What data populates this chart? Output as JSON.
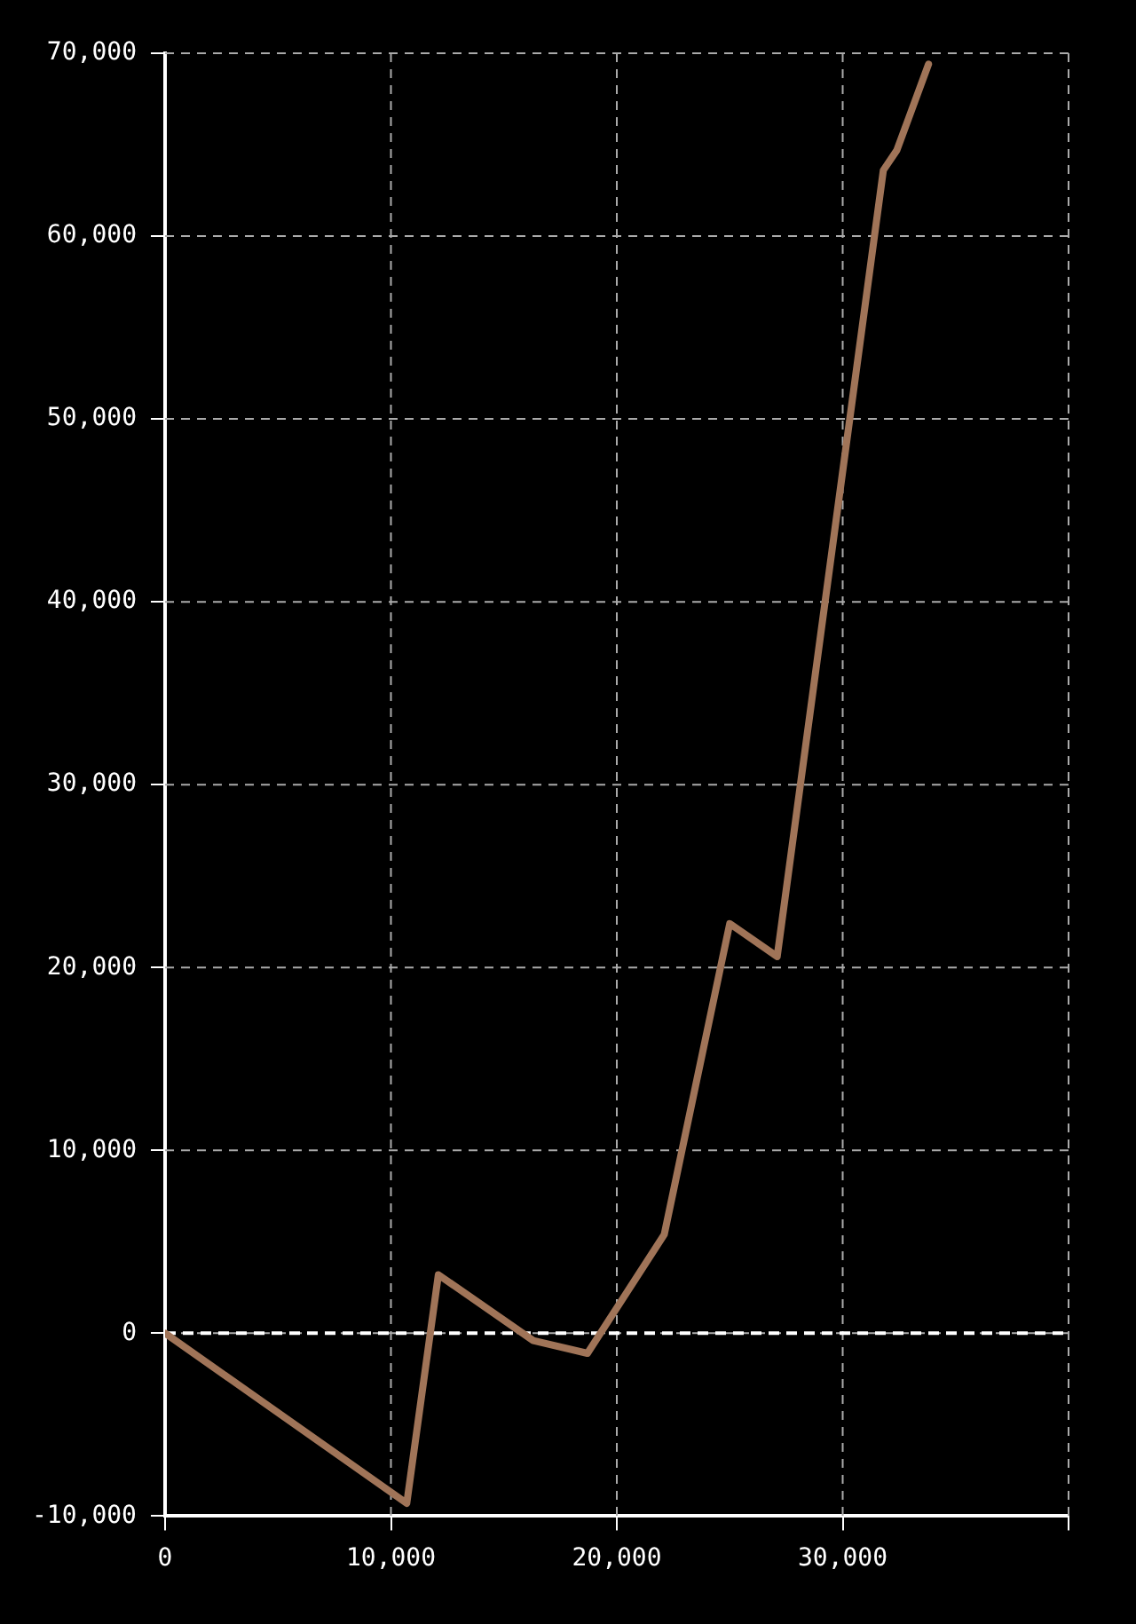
{
  "chart_data": {
    "type": "line",
    "x": [
      0,
      10700,
      12100,
      16300,
      18700,
      22100,
      25000,
      27100,
      31800,
      32400,
      33800
    ],
    "series": [
      {
        "color": "#a07458",
        "values": [
          0,
          -9300,
          3200,
          -400,
          -1100,
          5400,
          22400,
          20600,
          63600,
          64700,
          69400
        ]
      }
    ],
    "xlim": [
      0,
      40000
    ],
    "xticks": [
      0,
      {
        "value": 10000,
        "label": "10,000"
      },
      {
        "value": 20000,
        "label": "20,000"
      },
      {
        "value": 30000,
        "label": "30,000"
      },
      {
        "value": 40000,
        "label": null
      }
    ],
    "ylim": [
      -10000,
      70000
    ],
    "yticks": [
      {
        "value": -10000,
        "label": "-10,000"
      },
      0,
      {
        "value": 10000,
        "label": "10,000"
      },
      {
        "value": 20000,
        "label": "20,000"
      },
      {
        "value": 30000,
        "label": "30,000"
      },
      {
        "value": 40000,
        "label": "40,000"
      },
      {
        "value": 50000,
        "label": "50,000"
      },
      {
        "value": 60000,
        "label": "60,000"
      },
      {
        "value": 70000,
        "label": "70,000"
      }
    ],
    "ref_lines": [
      {
        "axis": "y",
        "value": 0,
        "color": "#ffffff",
        "line_style": "dashed"
      }
    ],
    "grid": true,
    "legend": false,
    "marker": "none",
    "line_style": "solid"
  }
}
